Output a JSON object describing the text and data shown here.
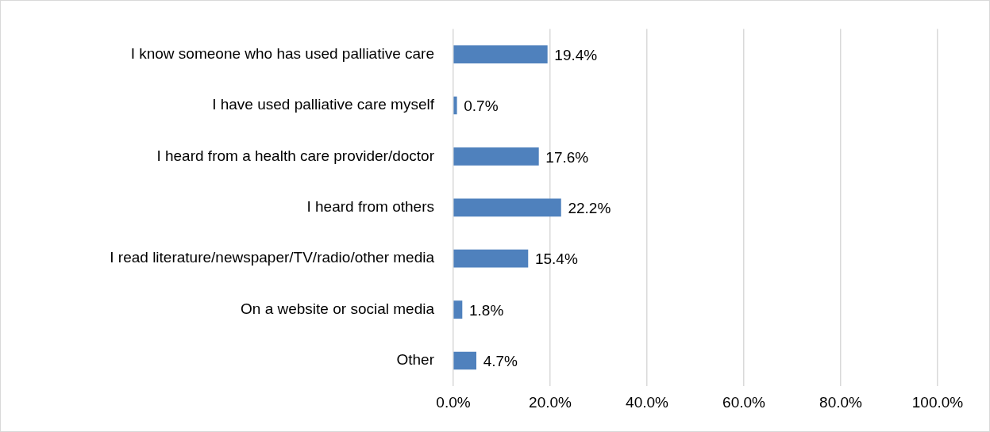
{
  "chart_data": {
    "type": "bar",
    "orientation": "horizontal",
    "categories": [
      "I know someone who has used palliative care",
      "I have used palliative care myself",
      "I heard from a health care provider/doctor",
      "I heard from others",
      "I read literature/newspaper/TV/radio/other media",
      "On a website or social media",
      "Other"
    ],
    "values": [
      19.4,
      0.7,
      17.6,
      22.2,
      15.4,
      1.8,
      4.7
    ],
    "value_labels": [
      "19.4%",
      "0.7%",
      "17.6%",
      "22.2%",
      "15.4%",
      "1.8%",
      "4.7%"
    ],
    "color": "#4f81bd",
    "xlim": [
      0,
      100
    ],
    "xticks": [
      {
        "value": 0,
        "label": "0.0%"
      },
      {
        "value": 20,
        "label": "20.0%"
      },
      {
        "value": 40,
        "label": "40.0%"
      },
      {
        "value": 60,
        "label": "60.0%"
      },
      {
        "value": 80,
        "label": "80.0%"
      },
      {
        "value": 100,
        "label": "100.0%"
      }
    ],
    "grid": "x",
    "legend": false
  }
}
